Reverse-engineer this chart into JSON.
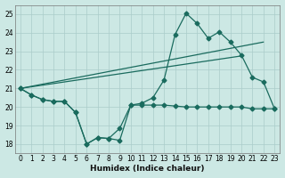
{
  "xlabel": "Humidex (Indice chaleur)",
  "bg_color": "#cce8e4",
  "grid_color": "#aaccca",
  "line_color": "#1a6b5e",
  "xlim": [
    -0.5,
    23.5
  ],
  "ylim": [
    17.5,
    25.5
  ],
  "yticks": [
    18,
    19,
    20,
    21,
    22,
    23,
    24,
    25
  ],
  "xticks": [
    0,
    1,
    2,
    3,
    4,
    5,
    6,
    7,
    8,
    9,
    10,
    11,
    12,
    13,
    14,
    15,
    16,
    17,
    18,
    19,
    20,
    21,
    22,
    23
  ],
  "series_bottom_x": [
    0,
    1,
    2,
    3,
    4,
    5,
    6,
    7,
    8,
    9,
    10,
    11,
    12,
    13,
    14,
    15,
    16,
    17,
    18,
    19,
    20,
    21,
    22,
    23
  ],
  "series_bottom_y": [
    21.0,
    20.65,
    20.4,
    20.3,
    20.3,
    19.7,
    18.0,
    18.35,
    18.3,
    18.2,
    20.1,
    20.1,
    20.1,
    20.1,
    20.05,
    20.0,
    20.0,
    20.0,
    20.0,
    20.0,
    20.0,
    19.9,
    19.9,
    19.9
  ],
  "series_main_x": [
    0,
    1,
    2,
    3,
    4,
    5,
    6,
    7,
    8,
    9,
    10,
    11,
    12,
    13,
    14,
    15,
    16,
    17,
    18,
    19,
    20,
    21,
    22,
    23
  ],
  "series_main_y": [
    21.0,
    20.65,
    20.4,
    20.3,
    20.3,
    19.7,
    18.0,
    18.35,
    18.3,
    18.85,
    20.1,
    20.2,
    20.5,
    21.45,
    23.9,
    25.05,
    24.5,
    23.7,
    24.05,
    23.5,
    22.8,
    21.6,
    21.35,
    19.9
  ],
  "trend1_x": [
    0,
    22
  ],
  "trend1_y": [
    21.0,
    23.5
  ],
  "trend2_x": [
    0,
    20
  ],
  "trend2_y": [
    21.0,
    22.75
  ],
  "marker": "D",
  "marker_size": 2.5,
  "line_width": 0.9
}
